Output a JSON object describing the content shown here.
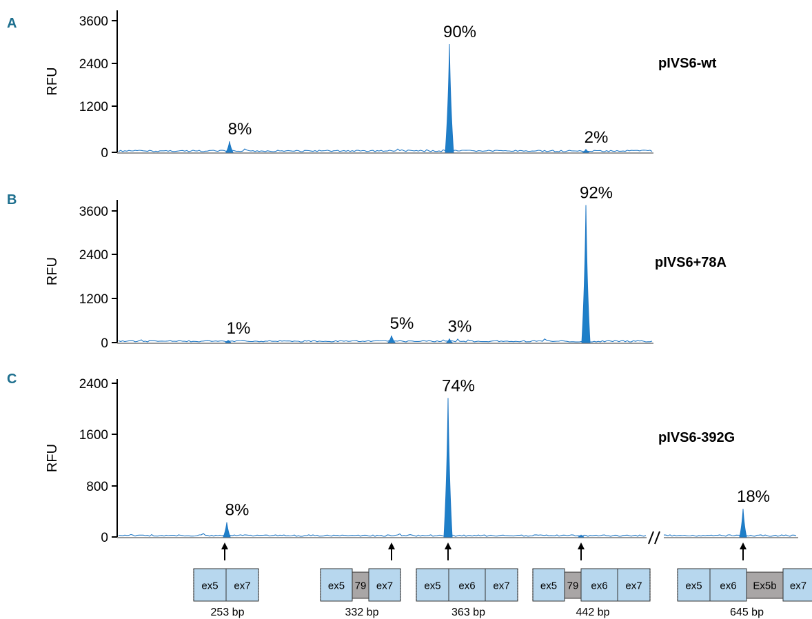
{
  "chart_data": [
    {
      "type": "line",
      "panel": "A",
      "construct": "pIVS6-wt",
      "ylabel": "RFU",
      "yticks": [
        0,
        1200,
        2400,
        3600
      ],
      "ylim": [
        0,
        3800
      ],
      "peaks": [
        {
          "label": "8%",
          "x": 253,
          "height": 300
        },
        {
          "label": "90%",
          "x": 363,
          "height": 2960
        },
        {
          "label": "2%",
          "x": 442,
          "height": 80
        }
      ]
    },
    {
      "type": "line",
      "panel": "B",
      "construct": "pIVS6+78A",
      "ylabel": "RFU",
      "yticks": [
        0,
        1200,
        2400,
        3600
      ],
      "ylim": [
        0,
        3800
      ],
      "peaks": [
        {
          "label": "1%",
          "x": 253,
          "height": 60
        },
        {
          "label": "5%",
          "x": 332,
          "height": 190
        },
        {
          "label": "3%",
          "x": 363,
          "height": 100
        },
        {
          "label": "92%",
          "x": 442,
          "height": 3760
        }
      ]
    },
    {
      "type": "line",
      "panel": "C",
      "construct": "pIVS6-392G",
      "ylabel": "RFU",
      "yticks": [
        0,
        800,
        1600,
        2400
      ],
      "ylim": [
        0,
        2600
      ],
      "axis_break": true,
      "peaks": [
        {
          "label": "8%",
          "x": 253,
          "height": 230
        },
        {
          "label": "74%",
          "x": 363,
          "height": 2170
        },
        {
          "label": "",
          "x": 442,
          "height": 30
        },
        {
          "label": "18%",
          "x": 645,
          "height": 440
        }
      ]
    }
  ],
  "products": [
    {
      "bp": "253 bp",
      "x": 253,
      "segments": [
        {
          "text": "ex5",
          "type": "exon"
        },
        {
          "text": "ex7",
          "type": "exon"
        }
      ]
    },
    {
      "bp": "332 bp",
      "x": 332,
      "segments": [
        {
          "text": "ex5",
          "type": "exon"
        },
        {
          "text": "79",
          "type": "intron"
        },
        {
          "text": "ex7",
          "type": "exon"
        }
      ]
    },
    {
      "bp": "363 bp",
      "x": 363,
      "segments": [
        {
          "text": "ex5",
          "type": "exon"
        },
        {
          "text": "ex6",
          "type": "exon"
        },
        {
          "text": "ex7",
          "type": "exon"
        }
      ]
    },
    {
      "bp": "442 bp",
      "x": 442,
      "segments": [
        {
          "text": "ex5",
          "type": "exon"
        },
        {
          "text": "79",
          "type": "intron"
        },
        {
          "text": "ex6",
          "type": "exon"
        },
        {
          "text": "ex7",
          "type": "exon"
        }
      ]
    },
    {
      "bp": "645 bp",
      "x": 645,
      "segments": [
        {
          "text": "ex5",
          "type": "exon"
        },
        {
          "text": "ex6",
          "type": "exon"
        },
        {
          "text": "Ex5b",
          "type": "intron"
        },
        {
          "text": "ex7",
          "type": "exon"
        }
      ]
    }
  ],
  "colors": {
    "trace": "#1f77c4",
    "fill": "#1e7fc8",
    "exon": "#b7d7ee",
    "intron": "#a9a6a6",
    "letter": "#1d6f8e"
  }
}
